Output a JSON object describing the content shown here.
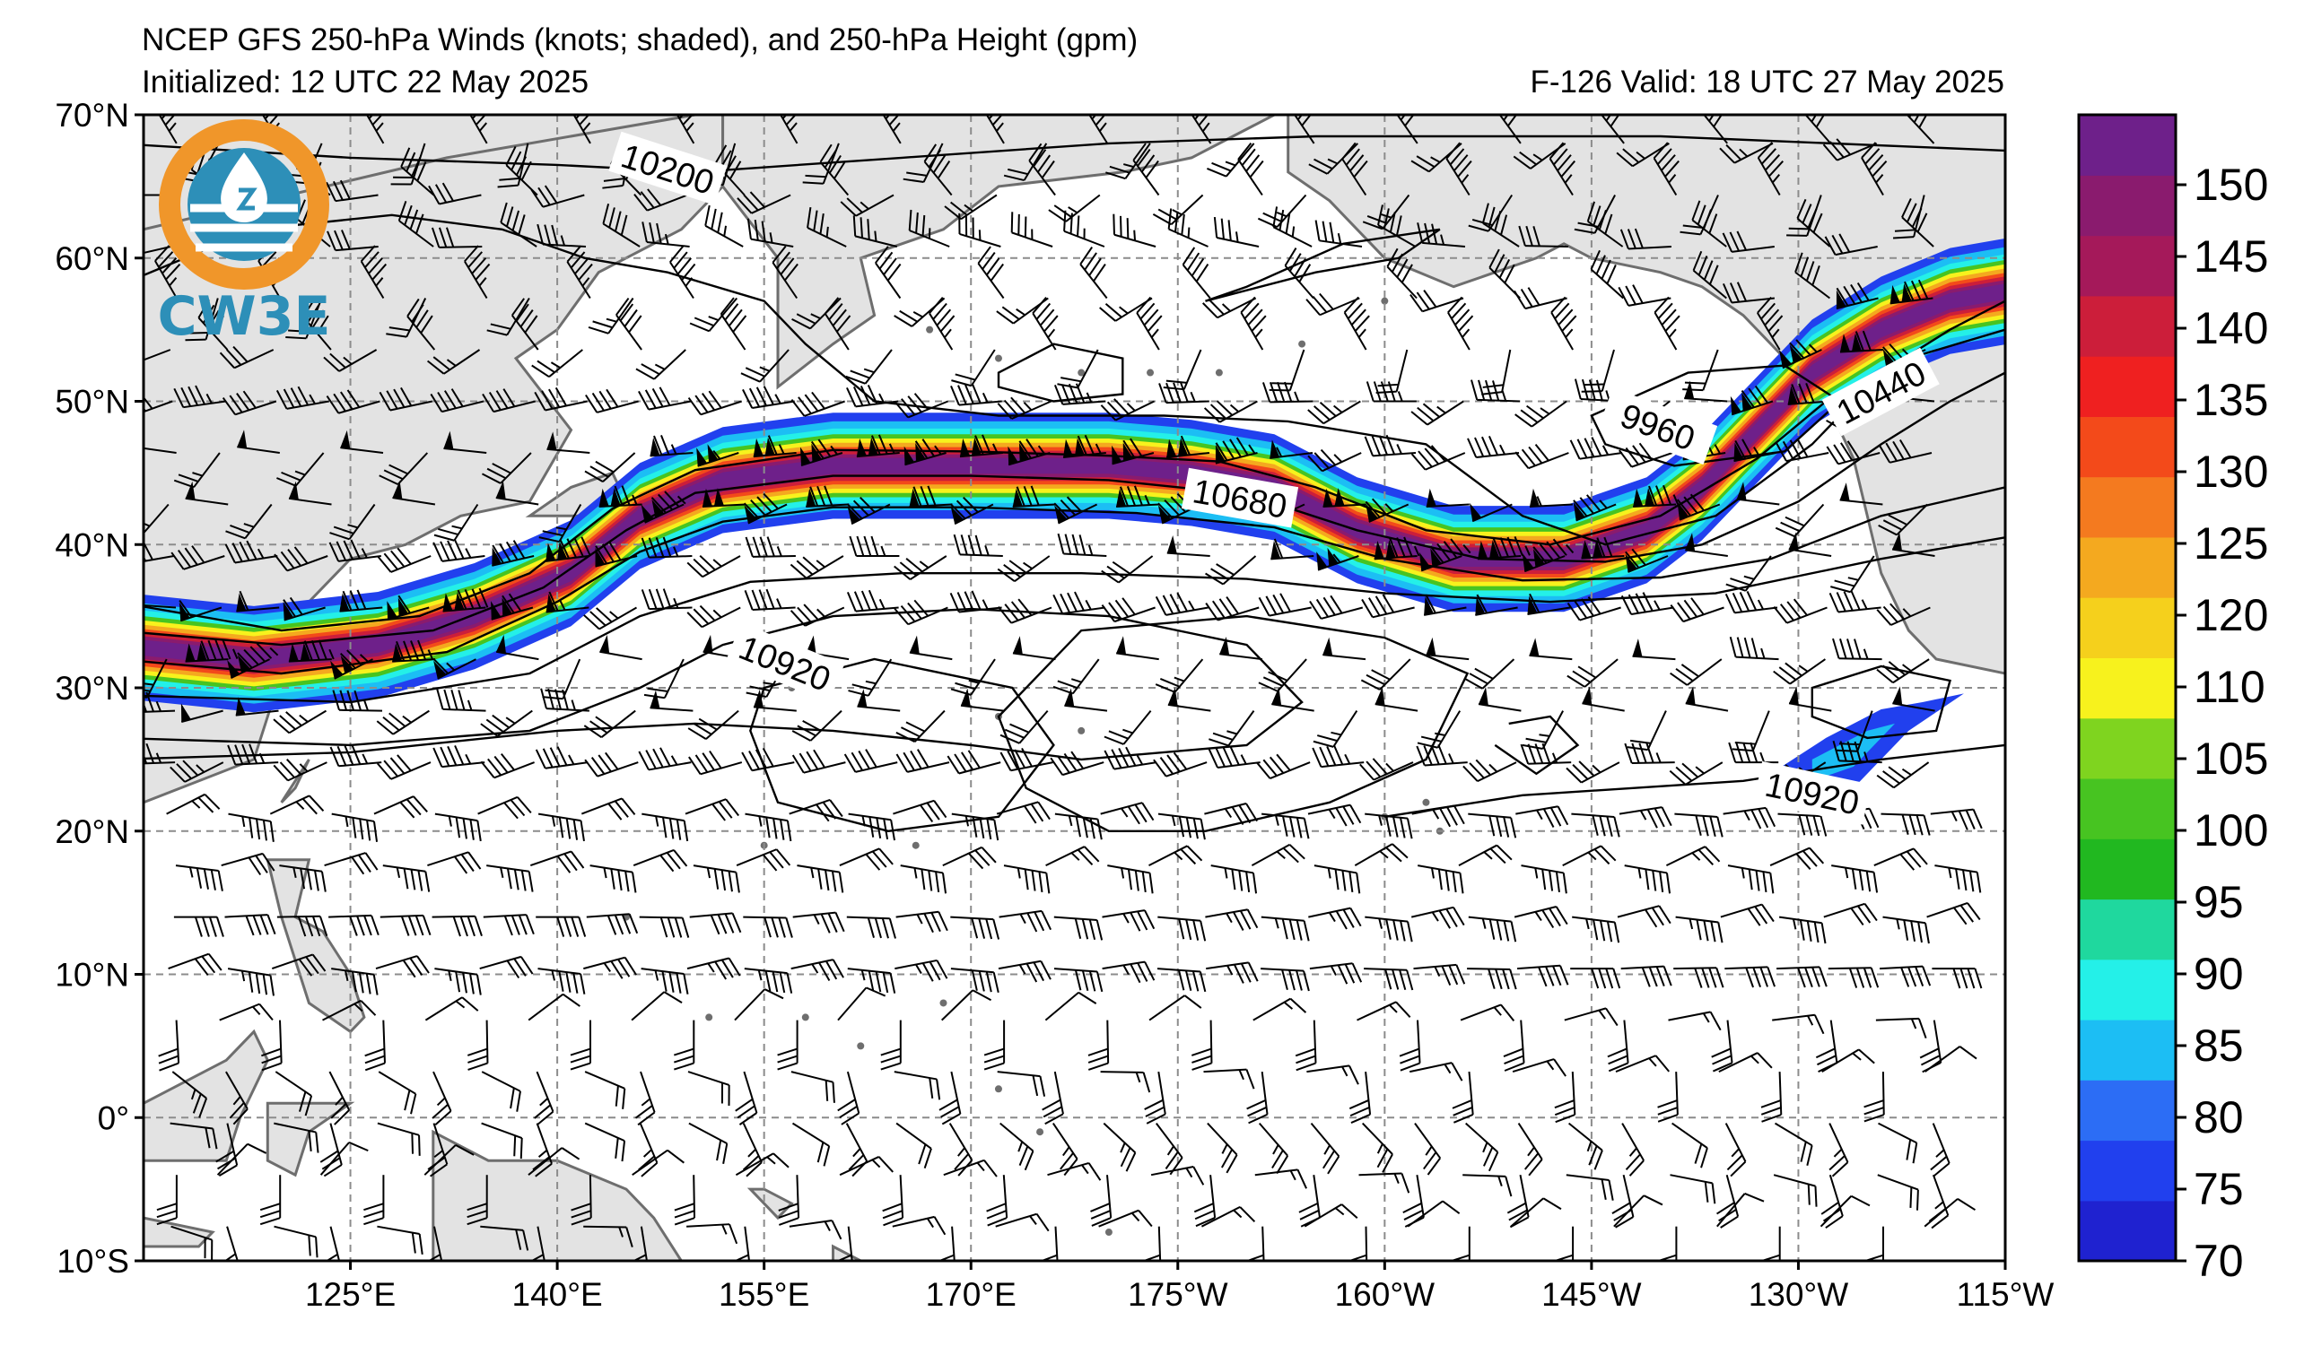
{
  "header": {
    "title": "NCEP GFS 250-hPa Winds (knots; shaded), and 250-hPa Height (gpm)",
    "initialized": "Initialized: 12 UTC 22 May 2025",
    "forecast": "F-126  Valid: 18 UTC 27 May 2025"
  },
  "logo": {
    "text": "CW3E",
    "icon": "cw3e-water-drop-logo"
  },
  "map": {
    "lon_range": [
      110,
      245
    ],
    "lat_range": [
      -10,
      70
    ],
    "lat_labels": [
      "70°N",
      "60°N",
      "50°N",
      "40°N",
      "30°N",
      "20°N",
      "10°N",
      "0°",
      "10°S"
    ],
    "lon_labels": [
      "125°E",
      "140°E",
      "155°E",
      "170°E",
      "175°W",
      "160°W",
      "145°W",
      "130°W",
      "115°W"
    ],
    "land_color": "#e3e3e3",
    "coast_color": "#6e6e6e",
    "grid_style": "dashed gray"
  },
  "contours": {
    "labels": [
      {
        "text": "10200",
        "lon": 148,
        "lat": 66.2,
        "angle": 18
      },
      {
        "text": "10680",
        "lon": 189.5,
        "lat": 43.2,
        "angle": 10
      },
      {
        "text": "10440",
        "lon": 236,
        "lat": 50.6,
        "angle": -28
      },
      {
        "text": "9960",
        "lon": 219.8,
        "lat": 48.2,
        "angle": 20
      },
      {
        "text": "10920",
        "lon": 156.5,
        "lat": 31.7,
        "angle": 22
      },
      {
        "text": "10920",
        "lon": 231,
        "lat": 22.6,
        "angle": 12
      }
    ]
  },
  "colorbar": {
    "levels": [
      70,
      75,
      80,
      85,
      90,
      95,
      100,
      105,
      110,
      120,
      125,
      130,
      135,
      140,
      145,
      150
    ],
    "tick_labels": [
      "70",
      "75",
      "80",
      "85",
      "90",
      "95",
      "100",
      "105",
      "110",
      "120",
      "125",
      "130",
      "135",
      "140",
      "145",
      "150"
    ],
    "colors": [
      "#1f22d0",
      "#2140ee",
      "#2c6df5",
      "#1cbef4",
      "#24f0e8",
      "#1fd89e",
      "#21b820",
      "#47c421",
      "#7fd41f",
      "#f7f21d",
      "#f5d01c",
      "#f4a91f",
      "#f47a1f",
      "#f34a1a",
      "#ef2020",
      "#cc1e3a",
      "#a5195a",
      "#8a1b6e",
      "#6e208a"
    ]
  }
}
